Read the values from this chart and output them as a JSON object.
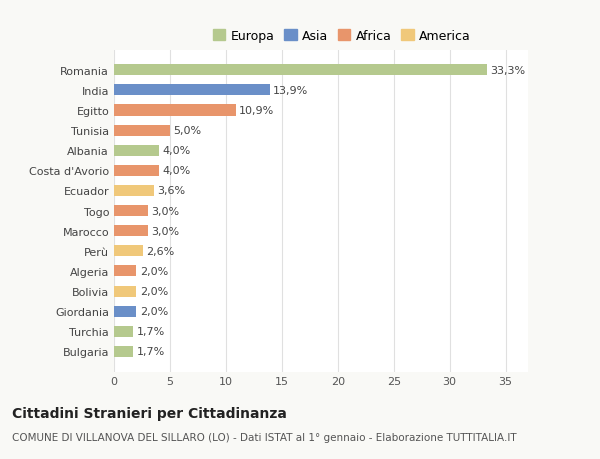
{
  "categories": [
    "Bulgaria",
    "Turchia",
    "Giordania",
    "Bolivia",
    "Algeria",
    "Perù",
    "Marocco",
    "Togo",
    "Ecuador",
    "Costa d'Avorio",
    "Albania",
    "Tunisia",
    "Egitto",
    "India",
    "Romania"
  ],
  "values": [
    1.7,
    1.7,
    2.0,
    2.0,
    2.0,
    2.6,
    3.0,
    3.0,
    3.6,
    4.0,
    4.0,
    5.0,
    10.9,
    13.9,
    33.3
  ],
  "labels": [
    "1,7%",
    "1,7%",
    "2,0%",
    "2,0%",
    "2,0%",
    "2,6%",
    "3,0%",
    "3,0%",
    "3,6%",
    "4,0%",
    "4,0%",
    "5,0%",
    "10,9%",
    "13,9%",
    "33,3%"
  ],
  "colors": [
    "#b5c98e",
    "#b5c98e",
    "#6a8fc8",
    "#f0c87a",
    "#e8956b",
    "#f0c87a",
    "#e8956b",
    "#e8956b",
    "#f0c87a",
    "#e8956b",
    "#b5c98e",
    "#e8956b",
    "#e8956b",
    "#6a8fc8",
    "#b5c98e"
  ],
  "legend_labels": [
    "Europa",
    "Asia",
    "Africa",
    "America"
  ],
  "legend_colors": [
    "#b5c98e",
    "#6a8fc8",
    "#e8956b",
    "#f0c87a"
  ],
  "title": "Cittadini Stranieri per Cittadinanza",
  "subtitle": "COMUNE DI VILLANOVA DEL SILLARO (LO) - Dati ISTAT al 1° gennaio - Elaborazione TUTTITALIA.IT",
  "xlim": [
    0,
    37
  ],
  "xticks": [
    0,
    5,
    10,
    15,
    20,
    25,
    30,
    35
  ],
  "background_color": "#f9f9f6",
  "plot_background": "#ffffff",
  "grid_color": "#e0e0e0",
  "bar_height": 0.55,
  "title_fontsize": 10,
  "subtitle_fontsize": 7.5,
  "tick_fontsize": 8,
  "label_fontsize": 8
}
